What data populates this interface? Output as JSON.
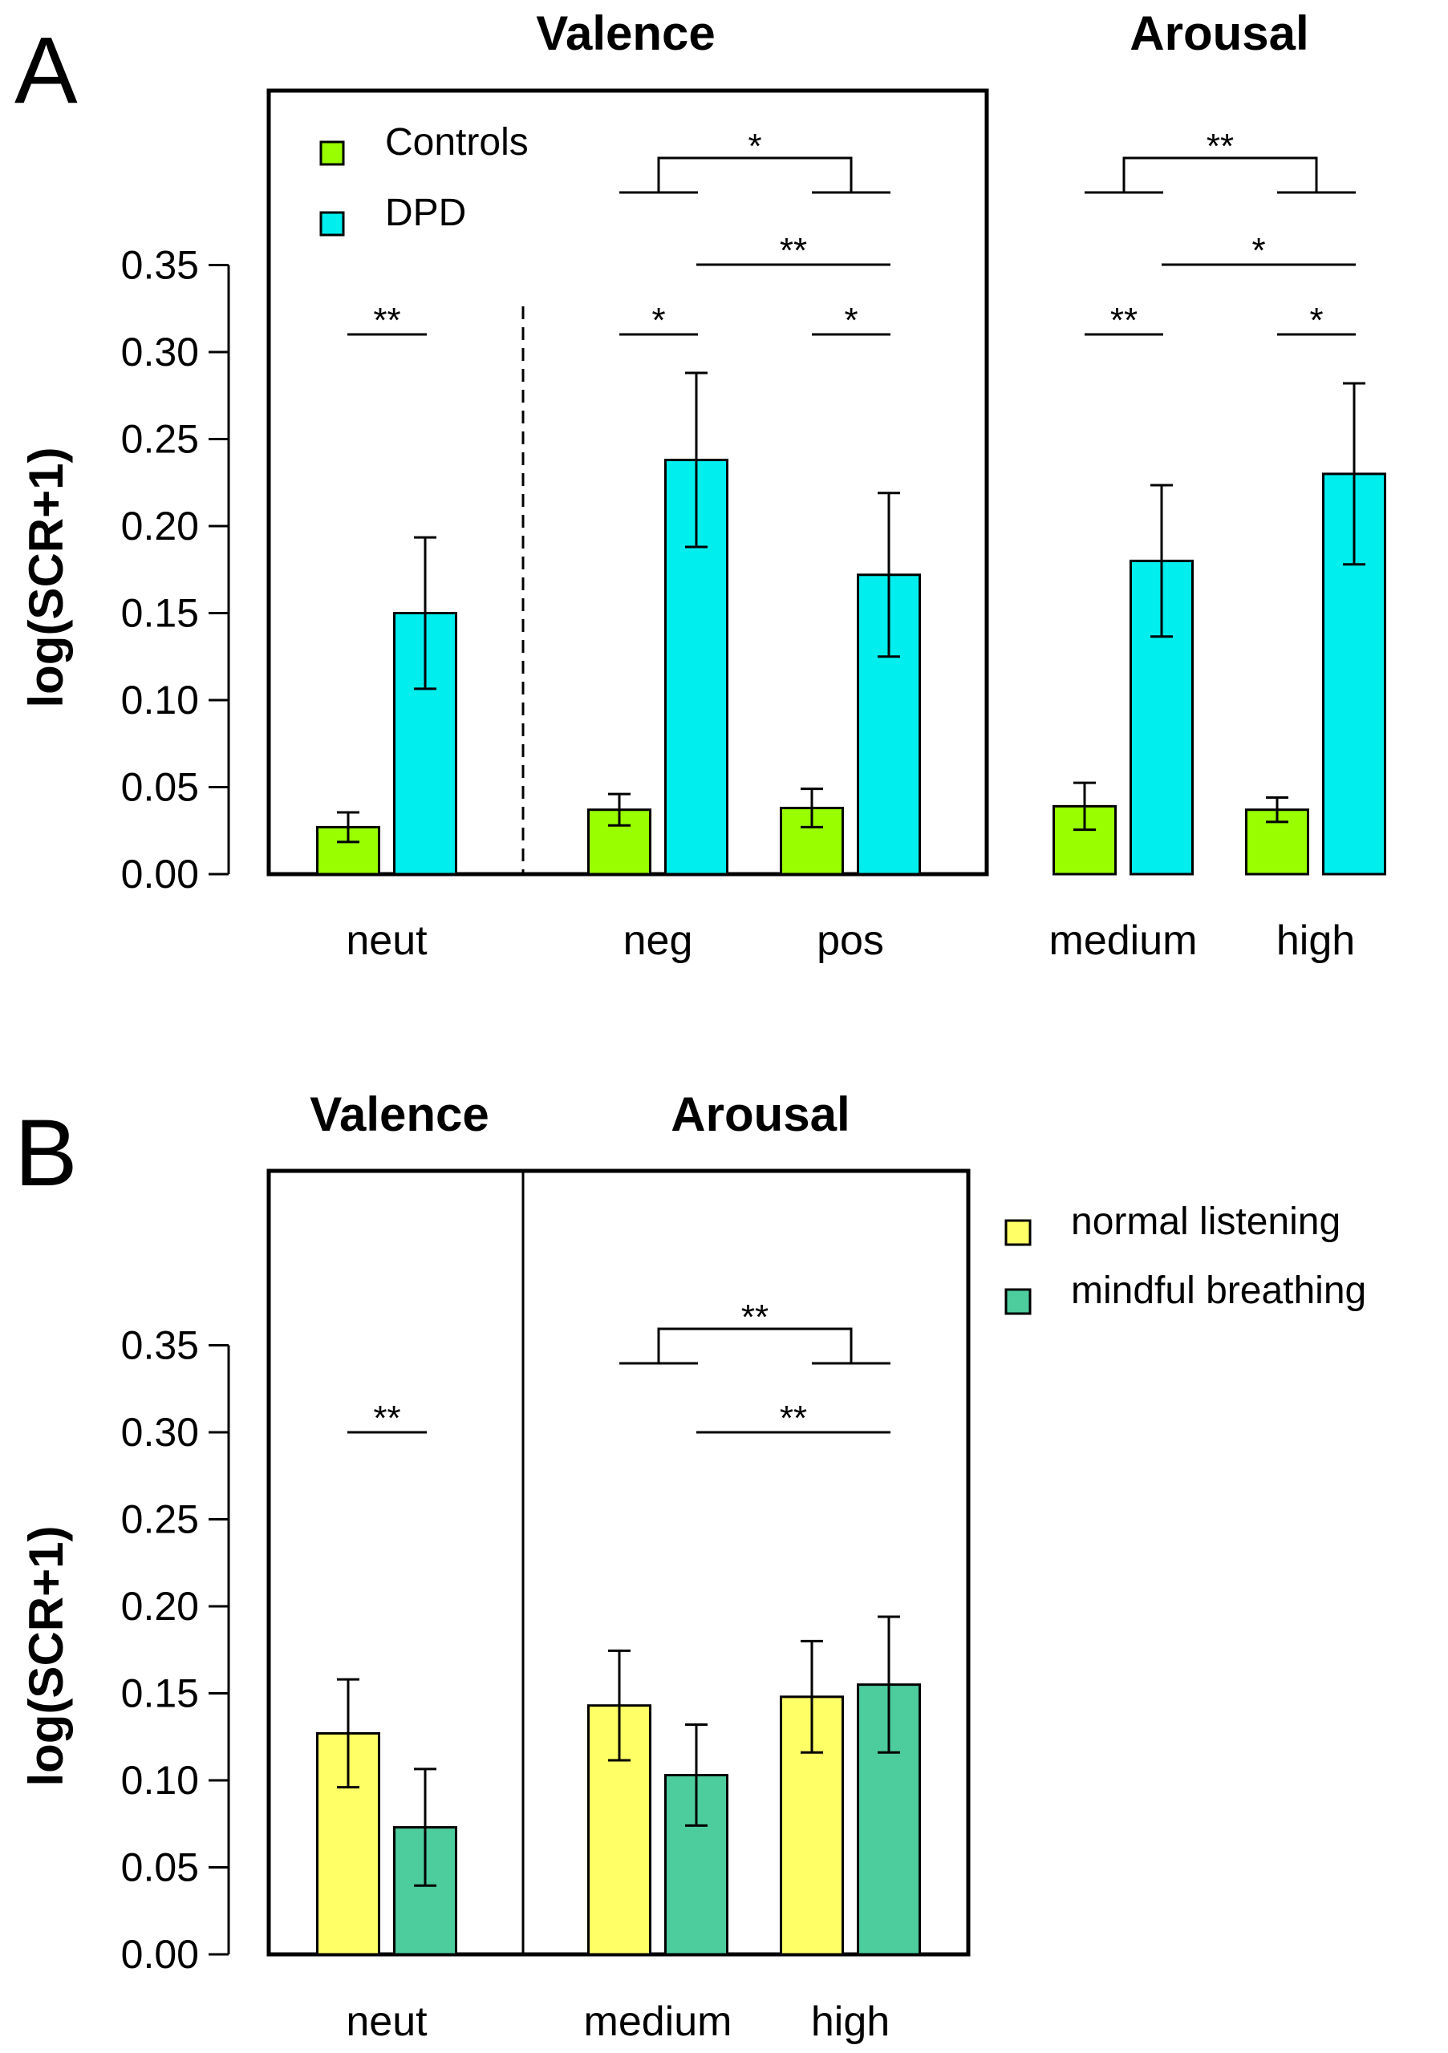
{
  "chart_data": [
    {
      "panel": "A",
      "type": "bar",
      "ylabel": "log(SCR+1)",
      "ylim": [
        0,
        0.35
      ],
      "yticks": [
        "0.00",
        "0.05",
        "0.10",
        "0.15",
        "0.20",
        "0.25",
        "0.30",
        "0.35"
      ],
      "sections": [
        "Valence",
        "Arousal"
      ],
      "categories": [
        "neut",
        "neg",
        "pos",
        "medium",
        "high"
      ],
      "series": [
        {
          "name": "Controls",
          "color": "#99ff00",
          "values": [
            0.027,
            0.037,
            0.038,
            0.039,
            0.037
          ],
          "err": [
            0.0085,
            0.009,
            0.011,
            0.0135,
            0.007
          ]
        },
        {
          "name": "DPD",
          "color": "#00eeee",
          "values": [
            0.15,
            0.238,
            0.172,
            0.18,
            0.23
          ],
          "err": [
            0.0435,
            0.05,
            0.047,
            0.0435,
            0.052
          ]
        }
      ],
      "legend": [
        "Controls",
        "DPD"
      ],
      "legend_position": "top-left",
      "annotations": [
        "*",
        "**",
        "**",
        "*",
        "*",
        "**",
        "**",
        "*",
        "*"
      ]
    },
    {
      "panel": "B",
      "type": "bar",
      "ylabel": "log(SCR+1)",
      "ylim": [
        0,
        0.35
      ],
      "yticks": [
        "0.00",
        "0.05",
        "0.10",
        "0.15",
        "0.20",
        "0.25",
        "0.30",
        "0.35"
      ],
      "sections": [
        "Valence",
        "Arousal"
      ],
      "categories": [
        "neut",
        "medium",
        "high"
      ],
      "series": [
        {
          "name": "normal listening",
          "color": "#ffff66",
          "values": [
            0.127,
            0.143,
            0.148
          ],
          "err": [
            0.031,
            0.0315,
            0.032
          ]
        },
        {
          "name": "mindful breathing",
          "color": "#4dcc9e",
          "values": [
            0.073,
            0.103,
            0.155
          ],
          "err": [
            0.0335,
            0.029,
            0.039
          ]
        }
      ],
      "legend": [
        "normal listening",
        "mindful breathing"
      ],
      "legend_position": "right",
      "annotations": [
        "**",
        "**",
        "**"
      ]
    }
  ]
}
